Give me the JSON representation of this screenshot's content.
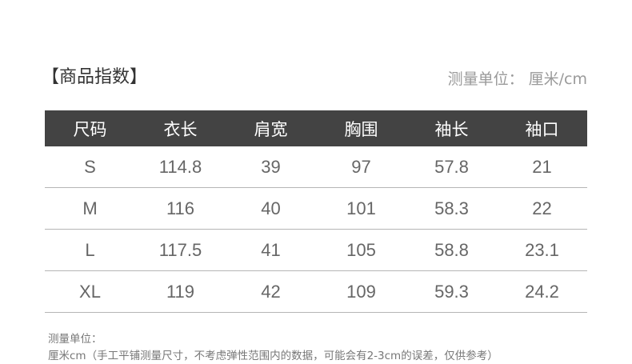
{
  "title": "【商品指数】",
  "unit_label": "测量单位：  厘米/cm",
  "table": {
    "headers": [
      "尺码",
      "衣长",
      "肩宽",
      "胸围",
      "袖长",
      "袖口"
    ],
    "rows": [
      [
        "S",
        "114.8",
        "39",
        "97",
        "57.8",
        "21"
      ],
      [
        "M",
        "116",
        "40",
        "101",
        "58.3",
        "22"
      ],
      [
        "L",
        "117.5",
        "41",
        "105",
        "58.8",
        "23.1"
      ],
      [
        "XL",
        "119",
        "42",
        "109",
        "59.3",
        "24.2"
      ]
    ]
  },
  "note": {
    "line1": "测量单位：",
    "line2": "厘米cm（手工平铺测量尺寸，不考虑弹性范围内的数据，可能会有2-3cm的误差，仅供参考）"
  }
}
